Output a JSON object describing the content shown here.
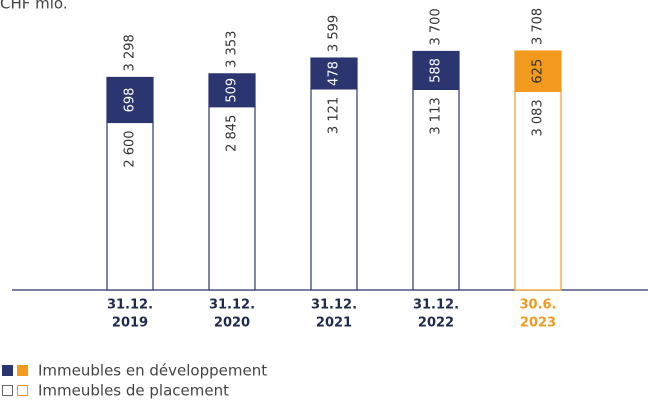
{
  "chart_data": {
    "type": "stacked_bar",
    "title": "CHF mio.",
    "categories": [
      [
        "31.12.",
        "2019"
      ],
      [
        "31.12.",
        "2020"
      ],
      [
        "31.12.",
        "2021"
      ],
      [
        "31.12.",
        "2022"
      ],
      [
        "30.6.",
        "2023"
      ]
    ],
    "series": [
      {
        "name": "Immeubles de placement",
        "color": "#ffffff",
        "values": [
          2600,
          2845,
          3121,
          3113,
          3083
        ],
        "value_labels": [
          "2 600",
          "2 845",
          "3 121",
          "3 113",
          "3 083"
        ]
      },
      {
        "name": "Immeubles en développement",
        "color": "#2b3570",
        "values": [
          698,
          509,
          478,
          588,
          625
        ],
        "value_labels": [
          "698",
          "509",
          "478",
          "588",
          "625"
        ]
      }
    ],
    "totals": [
      3298,
      3353,
      3599,
      3700,
      3708
    ],
    "total_labels": [
      "3 298",
      "3 353",
      "3 599",
      "3 700",
      "3 708"
    ],
    "highlight": 4,
    "highlight_color": "#f39a1e",
    "ylim": [
      0,
      4500
    ]
  }
}
